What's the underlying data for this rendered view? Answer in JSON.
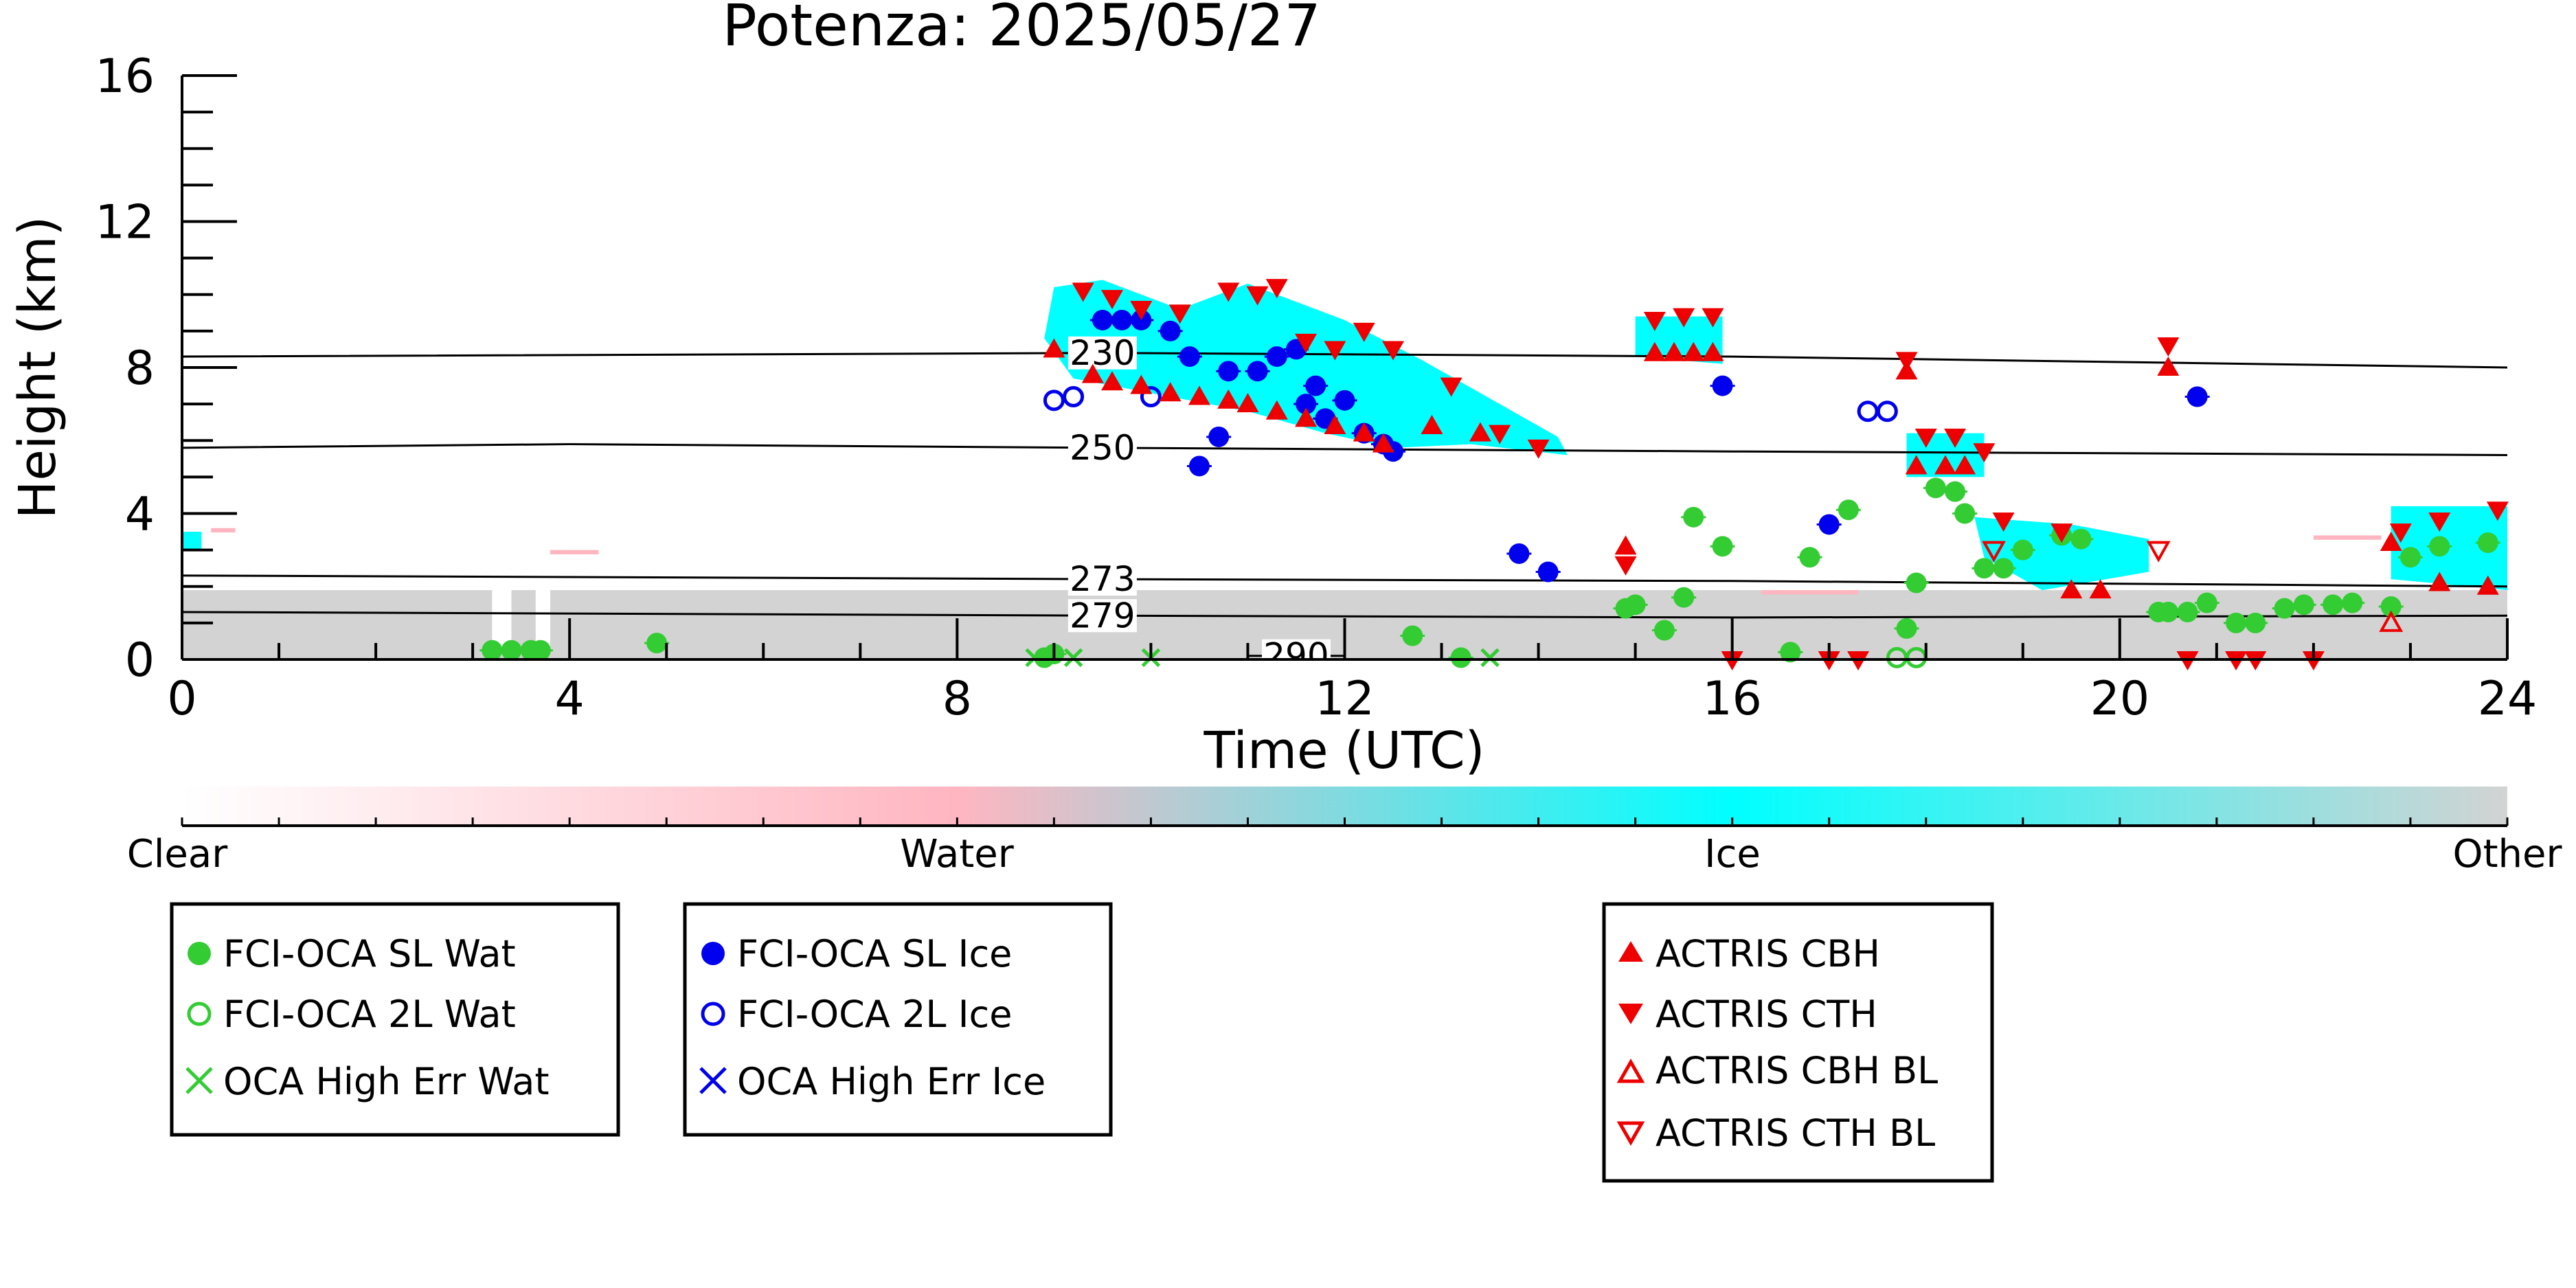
{
  "chart_data": {
    "type": "scatter",
    "title": "Potenza: 2025/05/27",
    "xlabel": "Time (UTC)",
    "ylabel": "Height (km)",
    "xlim": [
      0,
      24
    ],
    "ylim": [
      0,
      16
    ],
    "x_ticks": [
      0,
      4,
      8,
      12,
      16,
      20,
      24
    ],
    "y_ticks": [
      0,
      4,
      8,
      12,
      16
    ],
    "x_tick_labels": [
      "0",
      "4",
      "8",
      "12",
      "16",
      "20",
      "24"
    ],
    "y_tick_labels": [
      "0",
      "4",
      "8",
      "12",
      "16"
    ],
    "grid": false,
    "colorbar": {
      "labels": [
        "Clear",
        "Water",
        "Ice",
        "Other"
      ],
      "colors": [
        "#ffffff",
        "#ffb6c1",
        "#00ffff",
        "#d3d3d3"
      ]
    },
    "isotherms": [
      {
        "label": "230",
        "points": [
          [
            0,
            8.3
          ],
          [
            9.5,
            8.4
          ],
          [
            16,
            8.3
          ],
          [
            24,
            8.0
          ]
        ]
      },
      {
        "label": "250",
        "points": [
          [
            0,
            5.8
          ],
          [
            4,
            5.9
          ],
          [
            9.5,
            5.8
          ],
          [
            16,
            5.7
          ],
          [
            24,
            5.6
          ]
        ]
      },
      {
        "label": "273",
        "points": [
          [
            0,
            2.3
          ],
          [
            9.5,
            2.2
          ],
          [
            16,
            2.15
          ],
          [
            24,
            2.0
          ]
        ]
      },
      {
        "label": "279",
        "points": [
          [
            0,
            1.3
          ],
          [
            9.5,
            1.2
          ],
          [
            16,
            1.15
          ],
          [
            24,
            1.2
          ]
        ]
      },
      {
        "label": "290",
        "points": [
          [
            11,
            0.1
          ],
          [
            12,
            0.1
          ]
        ]
      }
    ],
    "series": [
      {
        "name": "FCI-OCA SL Wat",
        "marker": "filled-circle",
        "color": "#33cc33",
        "points": [
          [
            3.2,
            0.25
          ],
          [
            3.4,
            0.25
          ],
          [
            3.6,
            0.25
          ],
          [
            3.7,
            0.25
          ],
          [
            4.9,
            0.45
          ],
          [
            8.9,
            0.05
          ],
          [
            9.0,
            0.15
          ],
          [
            12.7,
            0.65
          ],
          [
            13.2,
            0.05
          ],
          [
            14.9,
            1.4
          ],
          [
            15.0,
            1.5
          ],
          [
            15.3,
            0.8
          ],
          [
            15.5,
            1.7
          ],
          [
            15.6,
            3.9
          ],
          [
            15.9,
            3.1
          ],
          [
            16.6,
            0.2
          ],
          [
            16.8,
            2.8
          ],
          [
            17.2,
            4.1
          ],
          [
            17.8,
            0.85
          ],
          [
            17.9,
            2.1
          ],
          [
            18.1,
            4.7
          ],
          [
            18.3,
            4.6
          ],
          [
            18.4,
            4.0
          ],
          [
            18.6,
            2.5
          ],
          [
            18.8,
            2.5
          ],
          [
            19.0,
            3.0
          ],
          [
            19.4,
            3.4
          ],
          [
            19.6,
            3.3
          ],
          [
            20.4,
            1.3
          ],
          [
            20.5,
            1.3
          ],
          [
            20.7,
            1.3
          ],
          [
            20.9,
            1.55
          ],
          [
            21.2,
            1.0
          ],
          [
            21.4,
            1.0
          ],
          [
            21.7,
            1.4
          ],
          [
            21.9,
            1.5
          ],
          [
            22.2,
            1.5
          ],
          [
            22.4,
            1.55
          ],
          [
            22.8,
            1.45
          ],
          [
            23.0,
            2.8
          ],
          [
            23.3,
            3.1
          ],
          [
            23.8,
            3.2
          ]
        ]
      },
      {
        "name": "FCI-OCA 2L Wat",
        "marker": "open-circle",
        "color": "#33cc33",
        "points": [
          [
            17.7,
            0.05
          ],
          [
            17.9,
            0.05
          ]
        ]
      },
      {
        "name": "OCA High Err Wat",
        "marker": "x",
        "color": "#33cc33",
        "points": [
          [
            8.8,
            0.05
          ],
          [
            9.2,
            0.05
          ],
          [
            10.0,
            0.05
          ],
          [
            13.5,
            0.05
          ]
        ]
      },
      {
        "name": "FCI-OCA SL Ice",
        "marker": "filled-circle",
        "color": "#0000ee",
        "points": [
          [
            9.5,
            9.3
          ],
          [
            9.7,
            9.3
          ],
          [
            9.9,
            9.3
          ],
          [
            10.2,
            9.0
          ],
          [
            10.4,
            8.3
          ],
          [
            10.5,
            5.3
          ],
          [
            10.7,
            6.1
          ],
          [
            10.8,
            7.9
          ],
          [
            11.1,
            7.9
          ],
          [
            11.3,
            8.3
          ],
          [
            11.5,
            8.5
          ],
          [
            11.6,
            7.0
          ],
          [
            11.7,
            7.5
          ],
          [
            11.8,
            6.6
          ],
          [
            12.0,
            7.1
          ],
          [
            12.2,
            6.2
          ],
          [
            12.4,
            5.9
          ],
          [
            12.5,
            5.7
          ],
          [
            13.8,
            2.9
          ],
          [
            14.1,
            2.4
          ],
          [
            15.9,
            7.5
          ],
          [
            17.0,
            3.7
          ],
          [
            20.8,
            7.2
          ]
        ]
      },
      {
        "name": "FCI-OCA 2L Ice",
        "marker": "open-circle",
        "color": "#0000ee",
        "points": [
          [
            9.0,
            7.1
          ],
          [
            9.2,
            7.2
          ],
          [
            10.0,
            7.2
          ],
          [
            17.4,
            6.8
          ],
          [
            17.6,
            6.8
          ]
        ]
      },
      {
        "name": "OCA High Err Ice",
        "marker": "x",
        "color": "#0000ee",
        "points": []
      },
      {
        "name": "ACTRIS CBH",
        "marker": "filled-triangle-up",
        "color": "#ee0000",
        "points": [
          [
            9.0,
            8.5
          ],
          [
            9.4,
            7.8
          ],
          [
            9.6,
            7.6
          ],
          [
            9.9,
            7.5
          ],
          [
            10.2,
            7.3
          ],
          [
            10.5,
            7.2
          ],
          [
            10.8,
            7.1
          ],
          [
            11.0,
            7.0
          ],
          [
            11.3,
            6.8
          ],
          [
            11.6,
            6.6
          ],
          [
            11.9,
            6.4
          ],
          [
            12.2,
            6.2
          ],
          [
            12.4,
            5.9
          ],
          [
            12.9,
            6.4
          ],
          [
            13.4,
            6.2
          ],
          [
            14.9,
            3.1
          ],
          [
            15.2,
            8.4
          ],
          [
            15.4,
            8.4
          ],
          [
            15.6,
            8.4
          ],
          [
            15.8,
            8.4
          ],
          [
            17.8,
            7.9
          ],
          [
            17.9,
            5.3
          ],
          [
            18.2,
            5.3
          ],
          [
            18.4,
            5.3
          ],
          [
            19.5,
            1.9
          ],
          [
            19.8,
            1.9
          ],
          [
            20.5,
            8.0
          ],
          [
            22.8,
            3.2
          ],
          [
            23.3,
            2.1
          ],
          [
            23.8,
            2.0
          ]
        ]
      },
      {
        "name": "ACTRIS CTH",
        "marker": "filled-triangle-down",
        "color": "#ee0000",
        "points": [
          [
            9.3,
            10.1
          ],
          [
            9.6,
            9.9
          ],
          [
            9.9,
            9.6
          ],
          [
            10.3,
            9.5
          ],
          [
            10.8,
            10.1
          ],
          [
            11.1,
            10.0
          ],
          [
            11.3,
            10.2
          ],
          [
            11.6,
            8.7
          ],
          [
            11.9,
            8.5
          ],
          [
            12.2,
            9.0
          ],
          [
            12.5,
            8.5
          ],
          [
            13.1,
            7.5
          ],
          [
            13.6,
            6.2
          ],
          [
            14.0,
            5.8
          ],
          [
            14.9,
            2.6
          ],
          [
            15.2,
            9.3
          ],
          [
            15.5,
            9.4
          ],
          [
            15.8,
            9.4
          ],
          [
            16.0,
            0.0
          ],
          [
            17.0,
            0.0
          ],
          [
            17.3,
            0.0
          ],
          [
            17.8,
            8.2
          ],
          [
            18.0,
            6.1
          ],
          [
            18.3,
            6.1
          ],
          [
            18.6,
            5.7
          ],
          [
            18.8,
            3.8
          ],
          [
            19.4,
            3.5
          ],
          [
            20.5,
            8.6
          ],
          [
            20.7,
            0.0
          ],
          [
            21.2,
            0.0
          ],
          [
            21.4,
            0.0
          ],
          [
            22.0,
            0.0
          ],
          [
            22.9,
            3.5
          ],
          [
            23.3,
            3.8
          ],
          [
            23.9,
            4.1
          ]
        ]
      },
      {
        "name": "ACTRIS CBH BL",
        "marker": "open-triangle-up",
        "color": "#ee0000",
        "points": [
          [
            22.8,
            1.0
          ]
        ]
      },
      {
        "name": "ACTRIS CTH BL",
        "marker": "open-triangle-down",
        "color": "#ee0000",
        "points": [
          [
            18.7,
            3.0
          ],
          [
            20.4,
            3.0
          ]
        ]
      }
    ]
  }
}
